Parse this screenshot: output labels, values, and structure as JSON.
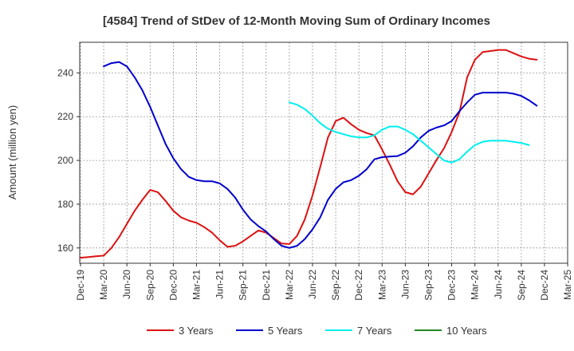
{
  "chart_data": {
    "type": "line",
    "title": "[4584]  Trend of StDev of 12-Month Moving Sum of Ordinary Incomes",
    "ylabel": "Amount (million yen)",
    "xlabel": "",
    "ylim": [
      153,
      254
    ],
    "yticks": [
      160,
      180,
      200,
      220,
      240
    ],
    "xticks": [
      "Dec-19",
      "Mar-20",
      "Jun-20",
      "Sep-20",
      "Dec-20",
      "Mar-21",
      "Jun-21",
      "Sep-21",
      "Dec-21",
      "Mar-22",
      "Jun-22",
      "Sep-22",
      "Dec-22",
      "Mar-23",
      "Jun-23",
      "Sep-23",
      "Dec-23",
      "Mar-24",
      "Jun-24",
      "Sep-24",
      "Dec-24",
      "Mar-25"
    ],
    "grid": true,
    "legend_position": "bottom",
    "series": [
      {
        "name": "3 Years",
        "color": "#dd1111",
        "start_index": 0,
        "values": [
          155.5,
          155.8,
          156.2,
          156.5,
          160,
          165,
          171,
          177,
          182,
          186.5,
          185.5,
          181.5,
          177,
          174,
          172.5,
          171.5,
          169.5,
          167,
          163.5,
          160.5,
          161,
          163,
          165.5,
          168,
          167,
          164.5,
          162,
          161.8,
          165.5,
          173,
          184,
          197,
          210.5,
          218,
          219.5,
          216.5,
          214,
          212.5,
          211.5,
          205,
          198,
          190.5,
          185.5,
          184.5,
          188,
          194,
          200,
          205.5,
          213,
          222,
          238,
          246,
          249.5,
          250,
          250.5,
          250.5,
          249,
          247.5,
          246.5,
          246
        ]
      },
      {
        "name": "5 Years",
        "color": "#0000cc",
        "start_index": 3,
        "values": [
          243,
          244.5,
          245,
          243,
          238,
          232,
          224.5,
          216,
          207.5,
          201,
          196,
          192.5,
          191,
          190.5,
          190.5,
          189.5,
          187,
          183,
          177.5,
          173,
          170,
          167.5,
          164,
          161,
          160,
          161,
          164,
          168.5,
          174,
          182,
          187,
          190,
          191,
          193,
          196,
          200.5,
          201.5,
          201.8,
          202,
          203.5,
          206.5,
          210.5,
          213.5,
          215,
          216,
          218,
          222.5,
          226.5,
          230,
          231,
          231,
          231,
          231,
          230.5,
          229.5,
          227.5,
          225
        ]
      },
      {
        "name": "7 Years",
        "color": "#00eeee",
        "start_index": 27,
        "values": [
          226.5,
          225.5,
          223.5,
          220.5,
          217,
          214.5,
          213,
          212,
          211,
          210.5,
          210.5,
          211.5,
          214,
          215.5,
          215.5,
          214,
          212,
          209,
          206,
          203,
          200,
          199,
          200.5,
          204,
          207,
          208.5,
          209,
          209,
          209,
          208.5,
          208,
          207
        ]
      },
      {
        "name": "10 Years",
        "color": "#228822",
        "start_index": 0,
        "values": []
      }
    ]
  }
}
